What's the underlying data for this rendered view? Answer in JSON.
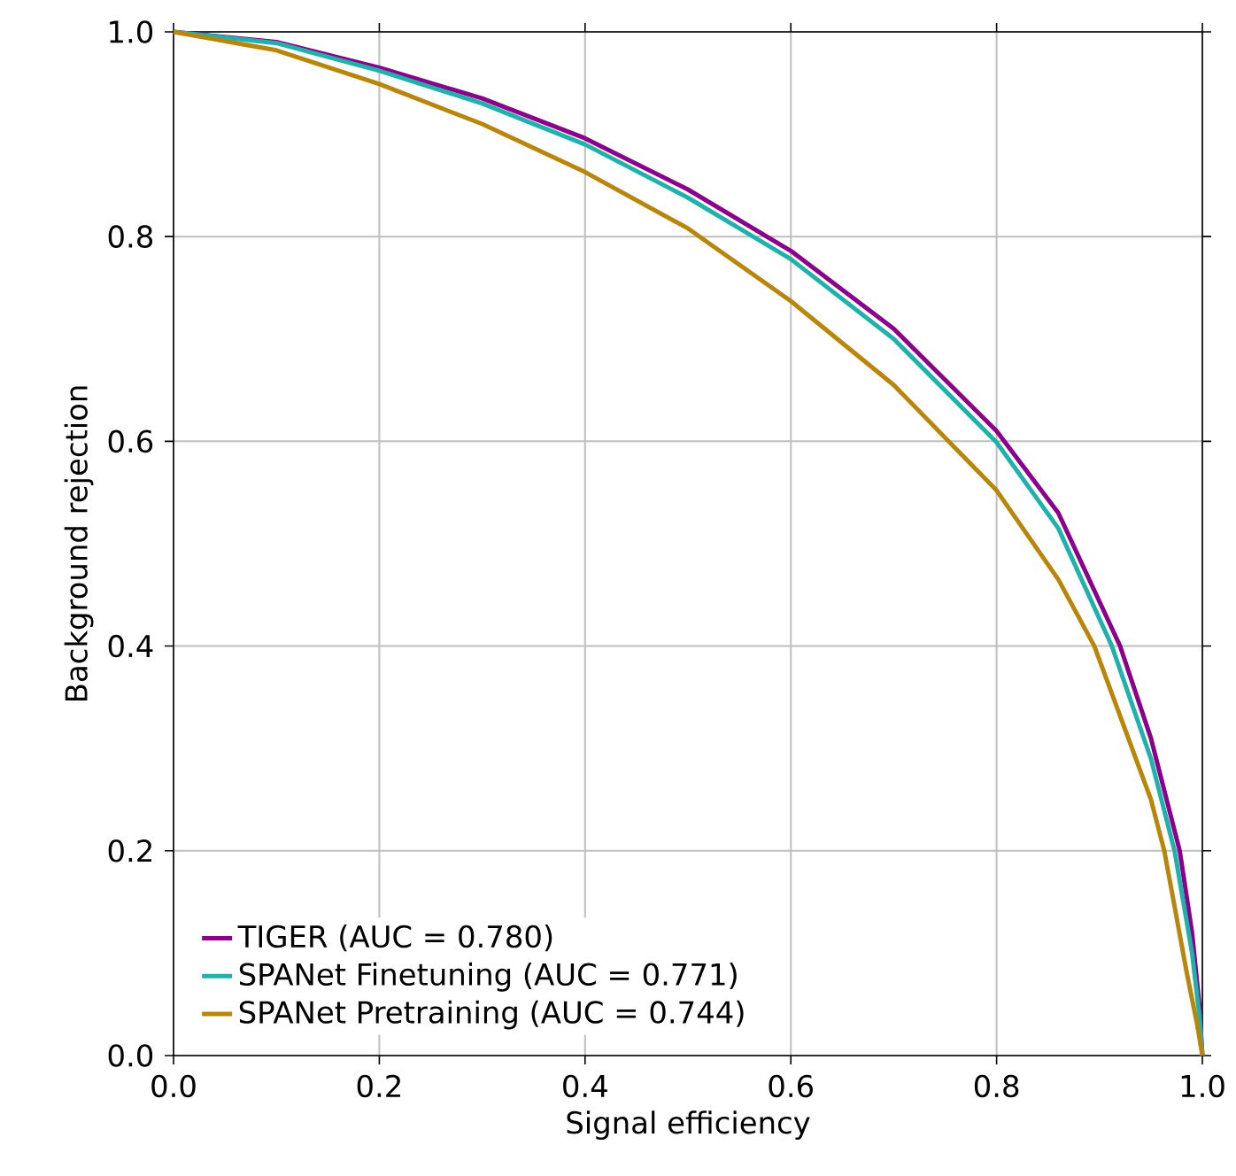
{
  "chart_data": {
    "type": "line",
    "xlabel": "Signal efficiency",
    "ylabel": "Background rejection",
    "xlim": [
      0,
      1
    ],
    "ylim": [
      0,
      1
    ],
    "xticks": [
      {
        "value": 0,
        "label": "0.0"
      },
      {
        "value": 0.2,
        "label": "0.2"
      },
      {
        "value": 0.4,
        "label": "0.4"
      },
      {
        "value": 0.6,
        "label": "0.6"
      },
      {
        "value": 0.8,
        "label": "0.8"
      },
      {
        "value": 1,
        "label": "1.0"
      }
    ],
    "yticks": [
      {
        "value": 0,
        "label": "0.0"
      },
      {
        "value": 0.2,
        "label": "0.2"
      },
      {
        "value": 0.4,
        "label": "0.4"
      },
      {
        "value": 0.6,
        "label": "0.6"
      },
      {
        "value": 0.8,
        "label": "0.8"
      },
      {
        "value": 1,
        "label": "1.0"
      }
    ],
    "grid": true,
    "legend": "bottom left",
    "marker": "none",
    "line_style": "solid",
    "series": [
      {
        "name": "TIGER (AUC = 0.780)",
        "color": "#8b008b",
        "x": [
          0,
          0.1,
          0.2,
          0.3,
          0.4,
          0.5,
          0.6,
          0.7,
          0.8,
          0.86,
          0.92,
          0.95,
          0.978,
          0.99,
          0.997,
          1.0
        ],
        "values": [
          1,
          0.99,
          0.965,
          0.935,
          0.896,
          0.846,
          0.786,
          0.71,
          0.61,
          0.53,
          0.4,
          0.31,
          0.2,
          0.12,
          0.05,
          0
        ]
      },
      {
        "name": "SPANet Finetuning (AUC = 0.771)",
        "color": "#20b2aa",
        "x": [
          0,
          0.1,
          0.2,
          0.3,
          0.4,
          0.5,
          0.6,
          0.7,
          0.8,
          0.86,
          0.912,
          0.95,
          0.973,
          0.99,
          0.997,
          1.0
        ],
        "values": [
          1,
          0.989,
          0.962,
          0.93,
          0.89,
          0.838,
          0.778,
          0.7,
          0.599,
          0.515,
          0.4,
          0.29,
          0.2,
          0.1,
          0.04,
          0
        ]
      },
      {
        "name": "SPANet Pretraining (AUC = 0.744)",
        "color": "#b8860b",
        "x": [
          0,
          0.1,
          0.2,
          0.3,
          0.4,
          0.5,
          0.6,
          0.7,
          0.8,
          0.86,
          0.895,
          0.95,
          0.963,
          0.985,
          0.995,
          1.0
        ],
        "values": [
          1,
          0.982,
          0.949,
          0.91,
          0.863,
          0.808,
          0.737,
          0.655,
          0.552,
          0.465,
          0.4,
          0.25,
          0.2,
          0.08,
          0.03,
          0
        ]
      }
    ]
  }
}
